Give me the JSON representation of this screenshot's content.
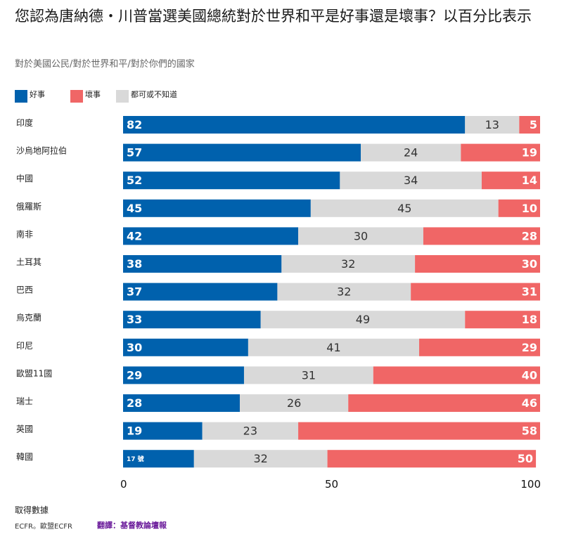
{
  "title": "您認為唐納德・川普當選美國總統對於世界和平是好事還是壞事？以百分比表示",
  "subtitle": "對於美國公民/對於世界和平/對於你們的國家",
  "legend": [
    {
      "label": "好事",
      "color": "#0061ad"
    },
    {
      "label": "壞事",
      "color": "#f06666"
    },
    {
      "label": "都可或不知道",
      "color": "#d9d9d9"
    }
  ],
  "source_title": "取得數據",
  "source_text": "ECFR。歐盟ECFR",
  "credit": "翻譯：基督教論壇報",
  "chart_data": {
    "type": "bar",
    "orientation": "horizontal",
    "stacked": true,
    "categories": [
      "印度",
      "沙烏地阿拉伯",
      "中國",
      "俄羅斯",
      "南非",
      "土耳其",
      "巴西",
      "烏克蘭",
      "印尼",
      "歐盟11國",
      "瑞士",
      "英國",
      "韓國"
    ],
    "series": [
      {
        "name": "好事",
        "color": "#0061ad",
        "values": [
          82,
          57,
          52,
          45,
          42,
          38,
          37,
          33,
          30,
          29,
          28,
          19,
          17
        ]
      },
      {
        "name": "都可或不知道",
        "color": "#d9d9d9",
        "values": [
          13,
          24,
          34,
          45,
          30,
          32,
          32,
          49,
          41,
          31,
          26,
          23,
          32
        ]
      },
      {
        "name": "壞事",
        "color": "#f06666",
        "values": [
          5,
          19,
          14,
          10,
          28,
          30,
          31,
          18,
          29,
          40,
          46,
          58,
          50
        ]
      }
    ],
    "special_labels": {
      "12": "17 號"
    },
    "xlim": [
      0,
      100
    ],
    "xticks": [
      0,
      50,
      100
    ],
    "legend_position": "top-left",
    "grid": false
  }
}
